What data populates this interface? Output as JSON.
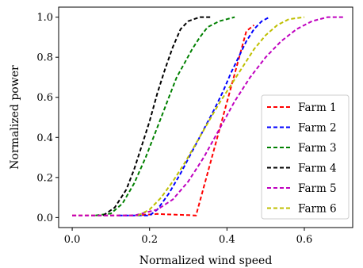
{
  "chart_data": {
    "type": "line",
    "title": "",
    "xlabel": "Normalized wind speed",
    "ylabel": "Normalized power",
    "xlim": [
      -0.035,
      0.725
    ],
    "ylim": [
      -0.05,
      1.05
    ],
    "xticks": [
      0.0,
      0.2,
      0.4,
      0.6
    ],
    "xtick_labels": [
      "0.0",
      "0.2",
      "0.4",
      "0.6"
    ],
    "yticks": [
      0.0,
      0.2,
      0.4,
      0.6,
      0.8,
      1.0
    ],
    "ytick_labels": [
      "0.0",
      "0.2",
      "0.4",
      "0.6",
      "0.8",
      "1.0"
    ],
    "grid": false,
    "legend_position": "lower-right",
    "series": [
      {
        "name": "Farm 1",
        "color": "#ff0000",
        "points": [
          [
            0.0,
            0.01
          ],
          [
            0.08,
            0.01
          ],
          [
            0.14,
            0.01
          ],
          [
            0.18,
            0.012
          ],
          [
            0.22,
            0.018
          ],
          [
            0.26,
            0.015
          ],
          [
            0.3,
            0.012
          ],
          [
            0.32,
            0.01
          ],
          [
            0.45,
            0.93
          ],
          [
            0.47,
            0.96
          ]
        ]
      },
      {
        "name": "Farm 2",
        "color": "#0000ff",
        "points": [
          [
            0.12,
            0.01
          ],
          [
            0.16,
            0.01
          ],
          [
            0.2,
            0.01
          ],
          [
            0.22,
            0.04
          ],
          [
            0.25,
            0.12
          ],
          [
            0.28,
            0.22
          ],
          [
            0.31,
            0.33
          ],
          [
            0.34,
            0.44
          ],
          [
            0.37,
            0.55
          ],
          [
            0.39,
            0.63
          ],
          [
            0.41,
            0.72
          ],
          [
            0.43,
            0.8
          ],
          [
            0.45,
            0.88
          ],
          [
            0.47,
            0.94
          ],
          [
            0.49,
            0.98
          ],
          [
            0.51,
            1.0
          ]
        ]
      },
      {
        "name": "Farm 3",
        "color": "#008000",
        "points": [
          [
            0.06,
            0.01
          ],
          [
            0.1,
            0.02
          ],
          [
            0.13,
            0.07
          ],
          [
            0.16,
            0.17
          ],
          [
            0.19,
            0.3
          ],
          [
            0.21,
            0.4
          ],
          [
            0.23,
            0.5
          ],
          [
            0.25,
            0.6
          ],
          [
            0.27,
            0.7
          ],
          [
            0.29,
            0.77
          ],
          [
            0.31,
            0.84
          ],
          [
            0.33,
            0.9
          ],
          [
            0.35,
            0.95
          ],
          [
            0.38,
            0.98
          ],
          [
            0.42,
            1.0
          ]
        ]
      },
      {
        "name": "Farm 4",
        "color": "#000000",
        "points": [
          [
            0.08,
            0.01
          ],
          [
            0.11,
            0.05
          ],
          [
            0.14,
            0.14
          ],
          [
            0.16,
            0.24
          ],
          [
            0.18,
            0.36
          ],
          [
            0.2,
            0.48
          ],
          [
            0.22,
            0.62
          ],
          [
            0.24,
            0.74
          ],
          [
            0.26,
            0.85
          ],
          [
            0.28,
            0.94
          ],
          [
            0.3,
            0.98
          ],
          [
            0.33,
            1.0
          ],
          [
            0.36,
            1.0
          ]
        ]
      },
      {
        "name": "Farm 5",
        "color": "#bf00bf",
        "points": [
          [
            0.0,
            0.01
          ],
          [
            0.1,
            0.01
          ],
          [
            0.16,
            0.01
          ],
          [
            0.22,
            0.04
          ],
          [
            0.26,
            0.09
          ],
          [
            0.3,
            0.18
          ],
          [
            0.34,
            0.3
          ],
          [
            0.38,
            0.44
          ],
          [
            0.42,
            0.58
          ],
          [
            0.46,
            0.7
          ],
          [
            0.5,
            0.8
          ],
          [
            0.54,
            0.88
          ],
          [
            0.58,
            0.94
          ],
          [
            0.62,
            0.98
          ],
          [
            0.66,
            1.0
          ],
          [
            0.7,
            1.0
          ]
        ]
      },
      {
        "name": "Farm 6",
        "color": "#bfbf00",
        "points": [
          [
            0.17,
            0.01
          ],
          [
            0.2,
            0.04
          ],
          [
            0.23,
            0.1
          ],
          [
            0.26,
            0.18
          ],
          [
            0.29,
            0.27
          ],
          [
            0.32,
            0.37
          ],
          [
            0.35,
            0.47
          ],
          [
            0.38,
            0.57
          ],
          [
            0.41,
            0.66
          ],
          [
            0.44,
            0.75
          ],
          [
            0.47,
            0.84
          ],
          [
            0.5,
            0.91
          ],
          [
            0.53,
            0.96
          ],
          [
            0.56,
            0.99
          ],
          [
            0.6,
            1.0
          ]
        ]
      }
    ]
  }
}
